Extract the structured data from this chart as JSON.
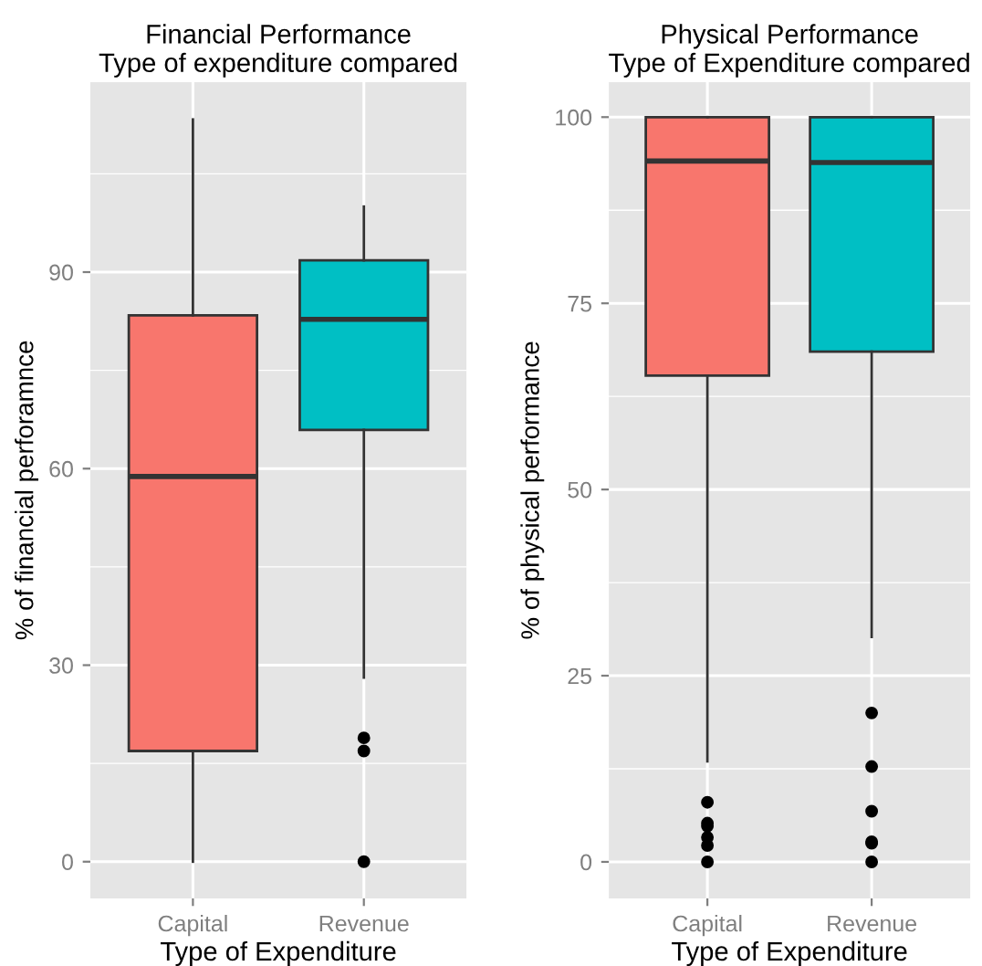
{
  "chart_data": [
    {
      "type": "box",
      "title": "Financial Performance\nType of expenditure compared",
      "xlabel": "Type of Expenditure",
      "ylabel": "% of financial perforamnce",
      "categories": [
        "Capital",
        "Revenue"
      ],
      "colors": [
        "#f8766d",
        "#00bfc4"
      ],
      "boxes": [
        {
          "low": 0,
          "q1": 16.9,
          "median": 58.8,
          "q3": 83.4,
          "high": 113.3
        },
        {
          "low": 28.1,
          "q1": 65.9,
          "median": 82.8,
          "q3": 91.8,
          "high": 100,
          "outliers": [
            18.9,
            16.9,
            0
          ]
        }
      ],
      "ylim": [
        -5.6,
        119
      ],
      "yticks": [
        0,
        30,
        60,
        90
      ],
      "grid": true,
      "legend": false
    },
    {
      "type": "box",
      "title": "Physical Performance\nType of Expenditure compared",
      "xlabel": "Type of Expenditure",
      "ylabel": "% of physical performance",
      "categories": [
        "Capital",
        "Revenue"
      ],
      "colors": [
        "#f8766d",
        "#00bfc4"
      ],
      "boxes": [
        {
          "low": 13.5,
          "q1": 65.3,
          "median": 94.1,
          "q3": 100,
          "high": 100,
          "outliers": [
            8.0,
            5.2,
            4.8,
            3.3,
            2.2,
            0
          ]
        },
        {
          "low": 30.2,
          "q1": 68.5,
          "median": 93.9,
          "q3": 100,
          "high": 100,
          "outliers": [
            20,
            12.8,
            6.8,
            2.7,
            2.5,
            0
          ]
        }
      ],
      "ylim": [
        -4.9,
        104.7
      ],
      "yticks": [
        0,
        25,
        50,
        75,
        100
      ],
      "grid": true,
      "legend": false
    }
  ]
}
